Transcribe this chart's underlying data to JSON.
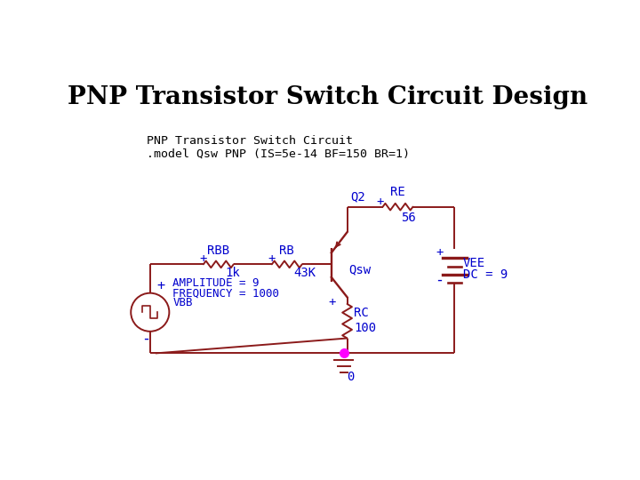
{
  "title": "PNP Transistor Switch Circuit Design",
  "title_fontsize": 20,
  "title_fontweight": "bold",
  "subtitle_line1": "PNP Transistor Switch Circuit",
  "subtitle_line2": ".model Qsw PNP (IS=5e-14 BF=150 BR=1)",
  "subtitle_fontsize": 9.5,
  "bg_color": "#ffffff",
  "wire_color": "#8B1A1A",
  "label_color": "#0000CD",
  "ground_color": "#FF00FF",
  "title_color": "#000000",
  "subtitle_color": "#000000",
  "lw": 1.4
}
